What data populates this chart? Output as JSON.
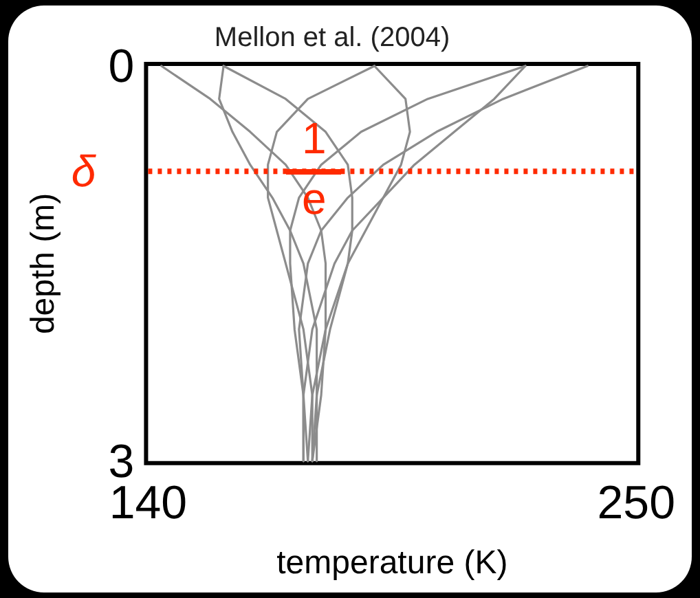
{
  "chart_data": {
    "type": "line",
    "orientation": "horizontal",
    "title": "Mellon et al. (2004)",
    "xlabel": "temperature (K)",
    "ylabel": "depth (m)",
    "xlim": [
      140,
      250
    ],
    "xticks": [
      140,
      250
    ],
    "ylim": [
      3,
      0
    ],
    "yticks": [
      0,
      3
    ],
    "legend": false,
    "marker": "none",
    "line_style": "solid",
    "series": [
      {
        "color": "#8c8c8c",
        "values": [
          239,
          220,
          205,
          193,
          185,
          179,
          176,
          174,
          175,
          175
        ],
        "x": [
          0,
          0.25,
          0.5,
          0.75,
          1,
          1.25,
          1.5,
          2,
          2.5,
          3
        ]
      },
      {
        "color": "#8c8c8c",
        "values": [
          225,
          218,
          209,
          200,
          193,
          186,
          182,
          177,
          175,
          175
        ],
        "x": [
          0,
          0.25,
          0.5,
          0.75,
          1,
          1.25,
          1.5,
          2,
          2.5,
          3
        ]
      },
      {
        "color": "#8c8c8c",
        "values": [
          191,
          198,
          199,
          197,
          193,
          189,
          185,
          180,
          177,
          176
        ],
        "x": [
          0,
          0.25,
          0.5,
          0.75,
          1,
          1.25,
          1.5,
          2,
          2.5,
          3
        ]
      },
      {
        "color": "#8c8c8c",
        "values": [
          157,
          171,
          180,
          185,
          186,
          186,
          185,
          181,
          178,
          177
        ],
        "x": [
          0,
          0.25,
          0.5,
          0.75,
          1,
          1.25,
          1.5,
          2,
          2.5,
          3
        ]
      },
      {
        "color": "#8c8c8c",
        "values": [
          143,
          154,
          163,
          171,
          176,
          179,
          180,
          180,
          179,
          177
        ],
        "x": [
          0,
          0.25,
          0.5,
          0.75,
          1,
          1.25,
          1.5,
          2,
          2.5,
          3
        ]
      },
      {
        "color": "#8c8c8c",
        "values": [
          157,
          156,
          159,
          163,
          168,
          172,
          175,
          178,
          178,
          178
        ],
        "x": [
          0,
          0.25,
          0.5,
          0.75,
          1,
          1.25,
          1.5,
          2,
          2.5,
          3
        ]
      },
      {
        "color": "#8c8c8c",
        "values": [
          191,
          176,
          169,
          167,
          167,
          169,
          171,
          175,
          177,
          177
        ],
        "x": [
          0,
          0.25,
          0.5,
          0.75,
          1,
          1.25,
          1.5,
          2,
          2.5,
          3
        ]
      },
      {
        "color": "#8c8c8c",
        "values": [
          225,
          203,
          188,
          179,
          174,
          172,
          172,
          173,
          175,
          176
        ],
        "x": [
          0,
          0.25,
          0.5,
          0.75,
          1,
          1.25,
          1.5,
          2,
          2.5,
          3
        ]
      }
    ],
    "ref_lines": [
      {
        "axis": "y",
        "value": 0.8,
        "label": "δ",
        "color": "#ff2a00",
        "line_style": "dotted"
      }
    ],
    "annotations": [
      "1",
      "e"
    ]
  }
}
